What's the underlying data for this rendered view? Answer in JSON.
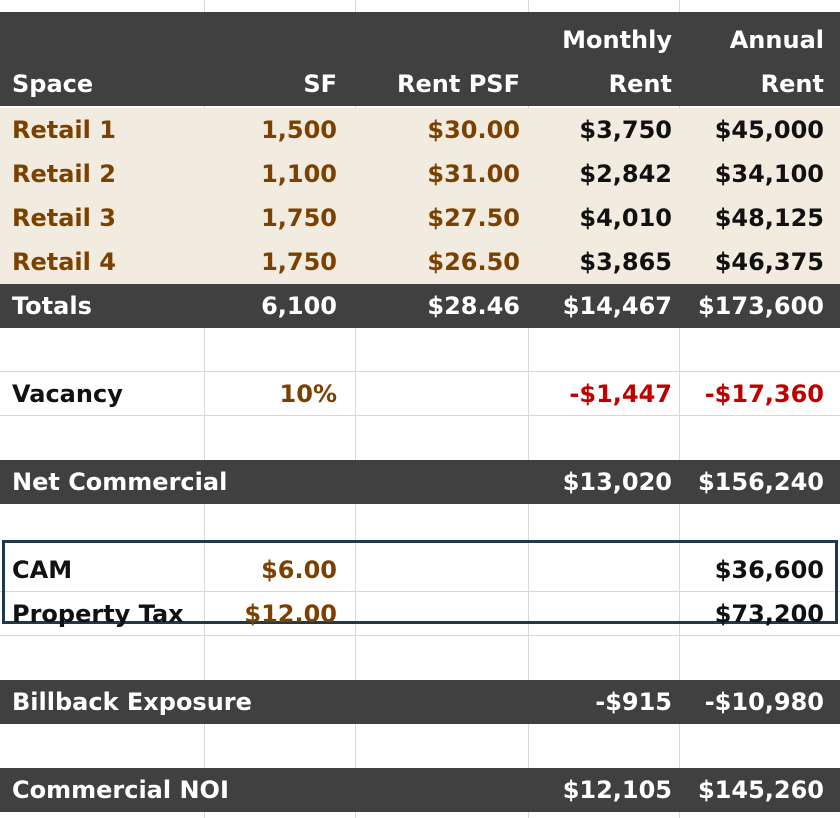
{
  "header": {
    "space": "Space",
    "sf": "SF",
    "rent_psf": "Rent PSF",
    "monthly_line1": "Monthly",
    "monthly_line2": "Rent",
    "annual_line1": "Annual",
    "annual_line2": "Rent"
  },
  "tenants": [
    {
      "space": "Retail 1",
      "sf": "1,500",
      "rent_psf": "$30.00",
      "monthly": "$3,750",
      "annual": "$45,000"
    },
    {
      "space": "Retail 2",
      "sf": "1,100",
      "rent_psf": "$31.00",
      "monthly": "$2,842",
      "annual": "$34,100"
    },
    {
      "space": "Retail 3",
      "sf": "1,750",
      "rent_psf": "$27.50",
      "monthly": "$4,010",
      "annual": "$48,125"
    },
    {
      "space": "Retail 4",
      "sf": "1,750",
      "rent_psf": "$26.50",
      "monthly": "$3,865",
      "annual": "$46,375"
    }
  ],
  "totals": {
    "label": "Totals",
    "sf": "6,100",
    "rent_psf": "$28.46",
    "monthly": "$14,467",
    "annual": "$173,600"
  },
  "vacancy": {
    "label": "Vacancy",
    "rate": "10%",
    "monthly": "-$1,447",
    "annual": "-$17,360"
  },
  "net_commercial": {
    "label": "Net Commercial",
    "monthly": "$13,020",
    "annual": "$156,240"
  },
  "billbacks": [
    {
      "label": "CAM",
      "rate": "$6.00",
      "annual": "$36,600"
    },
    {
      "label": "Property Tax",
      "rate": "$12.00",
      "annual": "$73,200"
    }
  ],
  "billback_exposure": {
    "label": "Billback Exposure",
    "monthly": "-$915",
    "annual": "-$10,980"
  },
  "commercial_noi": {
    "label": "Commercial NOI",
    "monthly": "$12,105",
    "annual": "$145,260"
  },
  "colors": {
    "header_bg": "#404040",
    "tenant_bg": "#f2ebe0",
    "input_text": "#7a4100",
    "negative_text": "#c00000",
    "box_border": "#1f3a4d"
  }
}
